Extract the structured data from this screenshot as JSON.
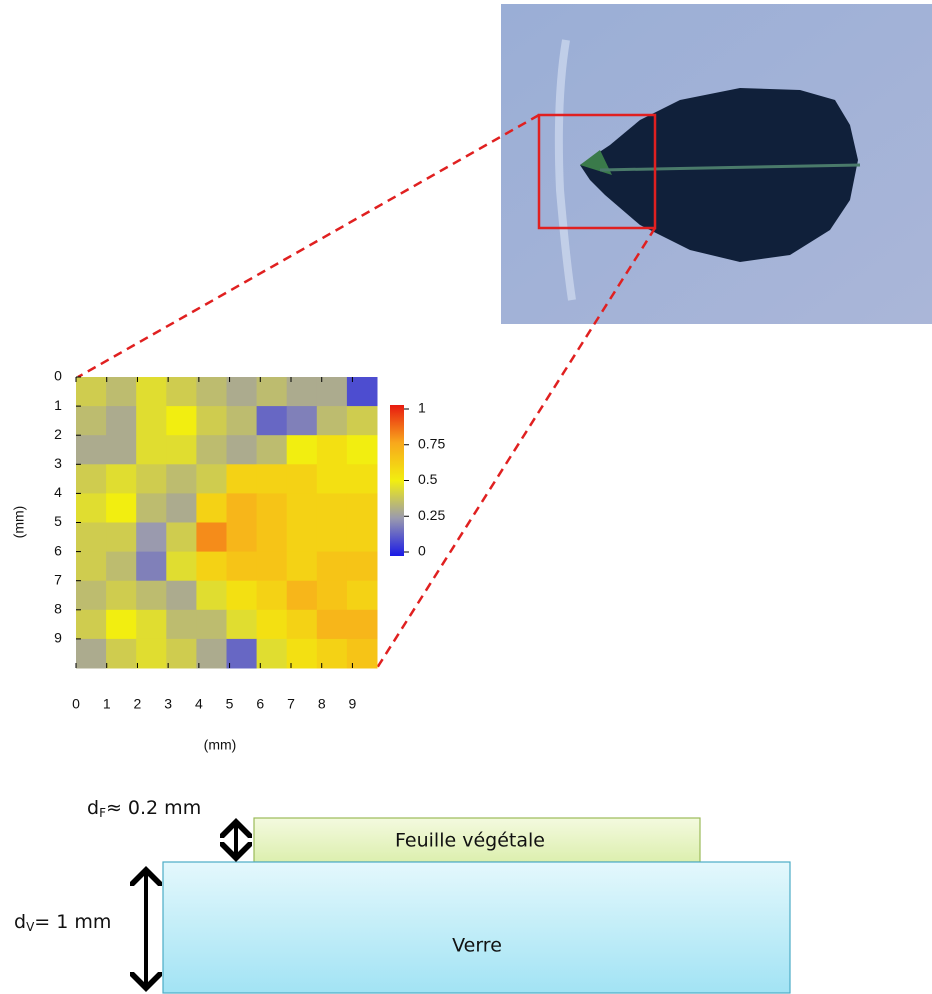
{
  "chart_data": {
    "type": "heatmap",
    "xlabel": "(mm)",
    "ylabel": "(mm)",
    "xlim": [
      0,
      9.8
    ],
    "ylim": [
      0,
      10
    ],
    "xticks": [
      0,
      1,
      2,
      3,
      4,
      5,
      6,
      7,
      8,
      9
    ],
    "yticks": [
      0,
      1,
      2,
      3,
      4,
      5,
      6,
      7,
      8,
      9
    ],
    "colorbar_ticks": [
      0,
      0.25,
      0.5,
      0.75,
      1
    ],
    "colorscale": [
      "#1a1ae6",
      "#9a9aae",
      "#f2ee10",
      "#f8a81c",
      "#e81a10"
    ],
    "values": [
      [
        0.4,
        0.35,
        0.45,
        0.4,
        0.35,
        0.3,
        0.35,
        0.3,
        0.3,
        0.1
      ],
      [
        0.35,
        0.3,
        0.45,
        0.5,
        0.4,
        0.35,
        0.15,
        0.2,
        0.35,
        0.4
      ],
      [
        0.3,
        0.3,
        0.45,
        0.45,
        0.35,
        0.3,
        0.35,
        0.5,
        0.55,
        0.5
      ],
      [
        0.4,
        0.45,
        0.4,
        0.35,
        0.4,
        0.6,
        0.6,
        0.6,
        0.55,
        0.55
      ],
      [
        0.45,
        0.5,
        0.35,
        0.3,
        0.6,
        0.7,
        0.65,
        0.6,
        0.6,
        0.6
      ],
      [
        0.4,
        0.4,
        0.25,
        0.4,
        0.8,
        0.7,
        0.65,
        0.6,
        0.6,
        0.6
      ],
      [
        0.4,
        0.35,
        0.2,
        0.45,
        0.6,
        0.65,
        0.65,
        0.6,
        0.65,
        0.65
      ],
      [
        0.35,
        0.4,
        0.35,
        0.3,
        0.45,
        0.55,
        0.6,
        0.7,
        0.65,
        0.6
      ],
      [
        0.4,
        0.5,
        0.45,
        0.35,
        0.35,
        0.45,
        0.55,
        0.6,
        0.7,
        0.7
      ],
      [
        0.3,
        0.4,
        0.45,
        0.4,
        0.3,
        0.15,
        0.45,
        0.55,
        0.6,
        0.65
      ]
    ]
  },
  "diagram": {
    "leaf_layer": "Feuille végétale",
    "glass_layer": "Verre",
    "leaf_thickness": {
      "symbol": "d",
      "subscript": "F",
      "text": "≈ 0.2 mm"
    },
    "glass_thickness": {
      "symbol": "d",
      "subscript": "V",
      "text": "= 1 mm"
    }
  }
}
